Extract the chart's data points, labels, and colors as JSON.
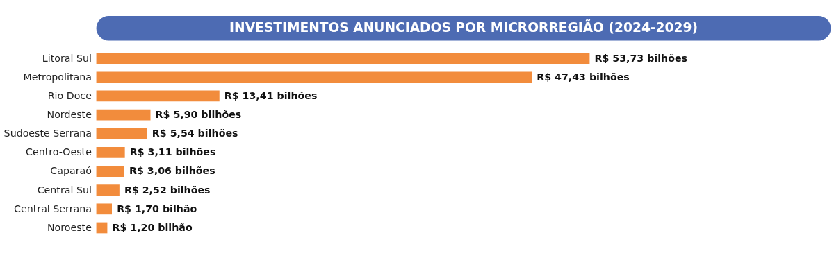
{
  "chart_data": {
    "type": "bar",
    "orientation": "horizontal",
    "title": "INVESTIMENTOS ANUNCIADOS POR MICRORREGIÃO (2024-2029)",
    "categories": [
      "Litoral Sul",
      "Metropolitana",
      "Rio Doce",
      "Nordeste",
      "Sudoeste Serrana",
      "Centro-Oeste",
      "Caparaó",
      "Central Sul",
      "Central Serrana",
      "Noroeste"
    ],
    "values": [
      53.73,
      47.43,
      13.41,
      5.9,
      5.54,
      3.11,
      3.06,
      2.52,
      1.7,
      1.2
    ],
    "value_labels": [
      "R$ 53,73 bilhões",
      "R$ 47,43 bilhões",
      "R$ 13,41 bilhões",
      "R$ 5,90 bilhões",
      "R$ 5,54 bilhões",
      "R$ 3,11 bilhões",
      "R$ 3,06 bilhões",
      "R$ 2,52 bilhões",
      "R$ 1,70 bilhão",
      "R$ 1,20 bilhão"
    ],
    "color": "#f28c3c"
  }
}
